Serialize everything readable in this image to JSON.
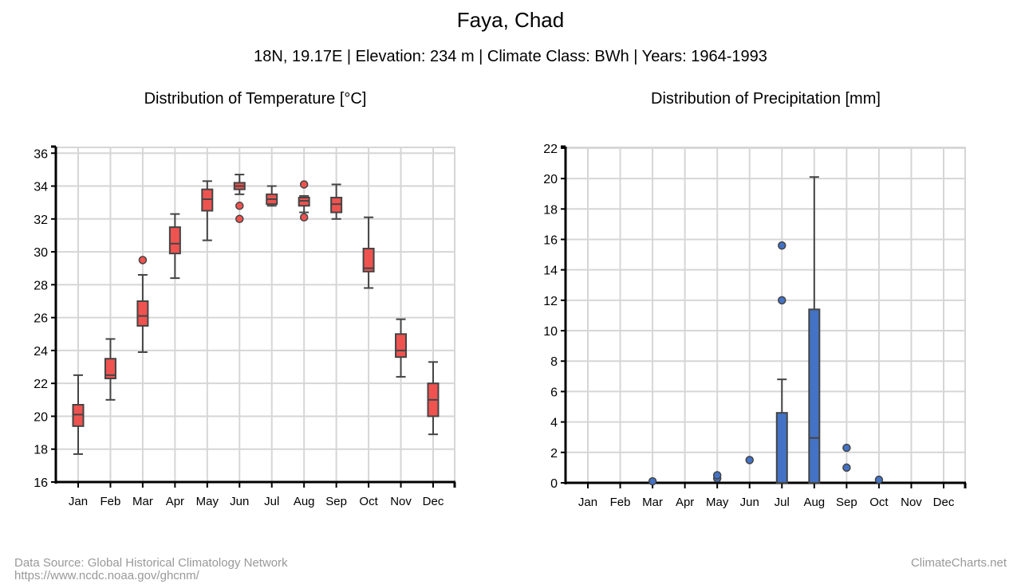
{
  "title": "Faya, Chad",
  "subtitle": "18N, 19.17E | Elevation: 234 m | Climate Class: BWh | Years: 1964-1993",
  "footer": {
    "source": "Data Source: Global Historical Climatology Network",
    "url": "https://www.ncdc.noaa.gov/ghcnm/",
    "brand": "ClimateCharts.net"
  },
  "chart_data": [
    {
      "type": "boxplot",
      "title": "Distribution of Temperature [°C]",
      "color": "#ef5350",
      "categories": [
        "Jan",
        "Feb",
        "Mar",
        "Apr",
        "May",
        "Jun",
        "Jul",
        "Aug",
        "Sep",
        "Oct",
        "Nov",
        "Dec"
      ],
      "ylim": [
        16,
        36.4
      ],
      "yticks": [
        16,
        18,
        20,
        22,
        24,
        26,
        28,
        30,
        32,
        34,
        36
      ],
      "grid": true,
      "boxes": [
        {
          "min": 17.7,
          "q1": 19.4,
          "median": 20.1,
          "q3": 20.7,
          "max": 22.5,
          "outliers": []
        },
        {
          "min": 21.0,
          "q1": 22.3,
          "median": 22.5,
          "q3": 23.5,
          "max": 24.7,
          "outliers": []
        },
        {
          "min": 23.9,
          "q1": 25.5,
          "median": 26.1,
          "q3": 27.0,
          "max": 28.6,
          "outliers": [
            29.5
          ]
        },
        {
          "min": 28.4,
          "q1": 29.9,
          "median": 30.5,
          "q3": 31.5,
          "max": 32.3,
          "outliers": []
        },
        {
          "min": 30.7,
          "q1": 32.5,
          "median": 33.2,
          "q3": 33.8,
          "max": 34.3,
          "outliers": []
        },
        {
          "min": 33.5,
          "q1": 33.8,
          "median": 34.0,
          "q3": 34.2,
          "max": 34.7,
          "outliers": [
            32.8,
            32.0
          ]
        },
        {
          "min": 32.8,
          "q1": 32.9,
          "median": 33.2,
          "q3": 33.5,
          "max": 34.0,
          "outliers": []
        },
        {
          "min": 32.4,
          "q1": 32.8,
          "median": 33.1,
          "q3": 33.3,
          "max": 33.4,
          "outliers": [
            34.1,
            32.1
          ]
        },
        {
          "min": 32.0,
          "q1": 32.4,
          "median": 32.9,
          "q3": 33.3,
          "max": 34.1,
          "outliers": []
        },
        {
          "min": 27.8,
          "q1": 28.8,
          "median": 29.0,
          "q3": 30.2,
          "max": 32.1,
          "outliers": []
        },
        {
          "min": 22.4,
          "q1": 23.6,
          "median": 24.0,
          "q3": 25.0,
          "max": 25.9,
          "outliers": []
        },
        {
          "min": 18.9,
          "q1": 20.0,
          "median": 21.0,
          "q3": 22.0,
          "max": 23.3,
          "outliers": []
        }
      ]
    },
    {
      "type": "boxplot",
      "title": "Distribution of Precipitation [mm]",
      "color": "#4472c4",
      "categories": [
        "Jan",
        "Feb",
        "Mar",
        "Apr",
        "May",
        "Jun",
        "Jul",
        "Aug",
        "Sep",
        "Oct",
        "Nov",
        "Dec"
      ],
      "ylim": [
        0,
        22.1
      ],
      "yticks": [
        0,
        2,
        4,
        6,
        8,
        10,
        12,
        14,
        16,
        18,
        20,
        22
      ],
      "grid": true,
      "boxes": [
        {
          "min": 0,
          "q1": 0,
          "median": 0,
          "q3": 0,
          "max": 0,
          "outliers": []
        },
        {
          "min": 0,
          "q1": 0,
          "median": 0,
          "q3": 0,
          "max": 0,
          "outliers": []
        },
        {
          "min": 0,
          "q1": 0,
          "median": 0,
          "q3": 0,
          "max": 0,
          "outliers": [
            0.1
          ]
        },
        {
          "min": 0,
          "q1": 0,
          "median": 0,
          "q3": 0,
          "max": 0,
          "outliers": []
        },
        {
          "min": 0,
          "q1": 0,
          "median": 0,
          "q3": 0,
          "max": 0,
          "outliers": [
            0.3,
            0.5
          ]
        },
        {
          "min": 0,
          "q1": 0,
          "median": 0,
          "q3": 0,
          "max": 0,
          "outliers": [
            1.5
          ]
        },
        {
          "min": 0,
          "q1": 0,
          "median": 0,
          "q3": 4.6,
          "max": 6.8,
          "outliers": [
            12.0,
            15.6
          ]
        },
        {
          "min": 0,
          "q1": 0,
          "median": 2.95,
          "q3": 11.4,
          "max": 20.1,
          "outliers": []
        },
        {
          "min": 0,
          "q1": 0,
          "median": 0,
          "q3": 0,
          "max": 0,
          "outliers": [
            2.3,
            1.0
          ]
        },
        {
          "min": 0,
          "q1": 0,
          "median": 0,
          "q3": 0,
          "max": 0,
          "outliers": [
            0.2
          ]
        },
        {
          "min": 0,
          "q1": 0,
          "median": 0,
          "q3": 0,
          "max": 0,
          "outliers": []
        },
        {
          "min": 0,
          "q1": 0,
          "median": 0,
          "q3": 0,
          "max": 0,
          "outliers": []
        }
      ]
    }
  ]
}
